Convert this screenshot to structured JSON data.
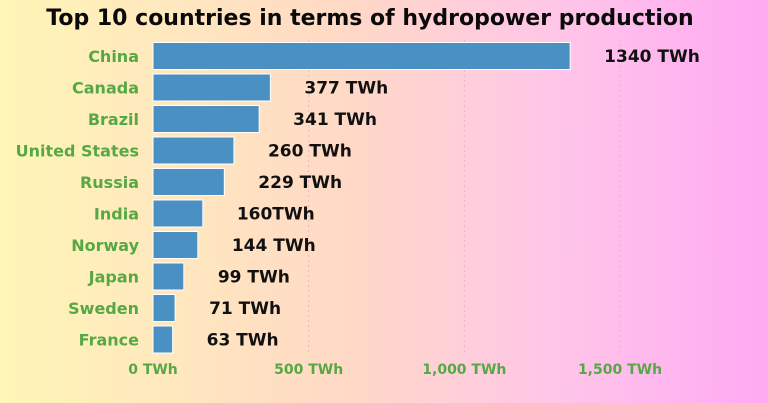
{
  "chart_data": {
    "type": "bar",
    "orientation": "horizontal",
    "title": "Top 10 countries in terms of hydropower production",
    "categories": [
      "China",
      "Canada",
      "Brazil",
      "United States",
      "Russia",
      "India",
      "Norway",
      "Japan",
      "Sweden",
      "France"
    ],
    "values": [
      1340,
      377,
      341,
      260,
      229,
      160,
      144,
      99,
      71,
      63
    ],
    "value_labels": [
      "1340 TWh",
      "377 TWh",
      "341 TWh",
      "260 TWh",
      "229 TWh",
      "160TWh",
      "144 TWh",
      "99 TWh",
      "71 TWh",
      "63 TWh"
    ],
    "unit": "TWh",
    "xlim": [
      0,
      1500
    ],
    "x_ticks": [
      0,
      500,
      1000,
      1500
    ],
    "x_tick_labels": [
      "0 TWh",
      "500 TWh",
      "1,000 TWh",
      "1,500 TWh"
    ],
    "grid": true,
    "legend": "none",
    "colors": {
      "bar": "#4a90c2",
      "bar_border": "#ffffff",
      "category_text": "#56a845",
      "tick_text": "#56a845",
      "value_text": "#111111",
      "grid": "#e6b8c6"
    }
  }
}
